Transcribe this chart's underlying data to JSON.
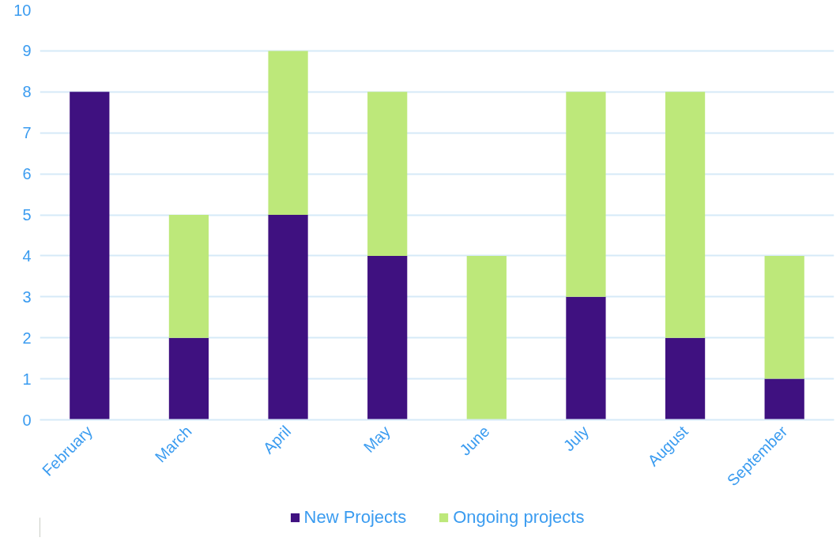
{
  "chart_data": {
    "type": "bar",
    "stacked": true,
    "categories": [
      "February",
      "March",
      "April",
      "May",
      "June",
      "July",
      "August",
      "September"
    ],
    "series": [
      {
        "name": "New Projects",
        "color": "#3f1180",
        "values": [
          8,
          2,
          5,
          4,
          0,
          3,
          2,
          1
        ]
      },
      {
        "name": "Ongoing projects",
        "color": "#bde87a",
        "values": [
          0,
          3,
          4,
          4,
          4,
          5,
          6,
          3
        ]
      }
    ],
    "ylim": [
      0,
      10
    ],
    "yticks": [
      0,
      1,
      2,
      3,
      4,
      5,
      6,
      7,
      8,
      9,
      10
    ],
    "grid": "y",
    "legend": "bottom"
  }
}
